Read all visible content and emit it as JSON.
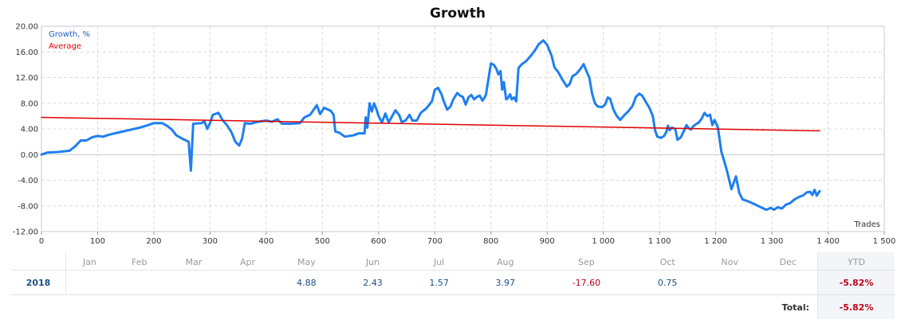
{
  "chart_data": {
    "type": "line",
    "title": "Growth",
    "xlabel": "Trades",
    "ylabel": "",
    "xlim": [
      0,
      1500
    ],
    "ylim": [
      -12,
      20
    ],
    "xticks": [
      "0",
      "100",
      "200",
      "300",
      "400",
      "500",
      "600",
      "700",
      "800",
      "900",
      "1 000",
      "1 100",
      "1 200",
      "1 300",
      "1 400",
      "1 500"
    ],
    "yticks": [
      "20.00",
      "16.00",
      "12.00",
      "8.00",
      "4.00",
      "0.00",
      "-4.00",
      "-8.00",
      "-12.00"
    ],
    "grid": true,
    "legend_position": "top-left",
    "series": [
      {
        "name": "Growth, %",
        "color": "#1e7ff0",
        "points": [
          [
            0,
            0.0
          ],
          [
            10,
            0.3
          ],
          [
            30,
            0.4
          ],
          [
            50,
            0.6
          ],
          [
            60,
            1.3
          ],
          [
            70,
            2.2
          ],
          [
            80,
            2.2
          ],
          [
            90,
            2.7
          ],
          [
            100,
            2.9
          ],
          [
            110,
            2.8
          ],
          [
            120,
            3.1
          ],
          [
            140,
            3.5
          ],
          [
            160,
            3.9
          ],
          [
            175,
            4.2
          ],
          [
            190,
            4.6
          ],
          [
            200,
            4.9
          ],
          [
            215,
            4.9
          ],
          [
            225,
            4.4
          ],
          [
            232,
            3.9
          ],
          [
            240,
            3.0
          ],
          [
            250,
            2.5
          ],
          [
            262,
            2.0
          ],
          [
            266,
            -2.5
          ],
          [
            270,
            4.8
          ],
          [
            285,
            4.9
          ],
          [
            290,
            5.2
          ],
          [
            295,
            4.0
          ],
          [
            300,
            4.9
          ],
          [
            305,
            6.2
          ],
          [
            315,
            6.5
          ],
          [
            322,
            5.4
          ],
          [
            330,
            4.6
          ],
          [
            338,
            3.5
          ],
          [
            345,
            2.0
          ],
          [
            352,
            1.4
          ],
          [
            357,
            2.5
          ],
          [
            362,
            4.9
          ],
          [
            372,
            4.8
          ],
          [
            385,
            5.1
          ],
          [
            400,
            5.3
          ],
          [
            410,
            5.1
          ],
          [
            420,
            5.5
          ],
          [
            428,
            4.8
          ],
          [
            445,
            4.8
          ],
          [
            460,
            4.9
          ],
          [
            468,
            5.8
          ],
          [
            478,
            6.2
          ],
          [
            483,
            6.8
          ],
          [
            490,
            7.7
          ],
          [
            496,
            6.3
          ],
          [
            503,
            7.3
          ],
          [
            515,
            6.8
          ],
          [
            520,
            6.2
          ],
          [
            523,
            3.6
          ],
          [
            530,
            3.4
          ],
          [
            540,
            2.8
          ],
          [
            555,
            3.0
          ],
          [
            565,
            3.3
          ],
          [
            575,
            3.3
          ],
          [
            577,
            5.8
          ],
          [
            580,
            4.2
          ],
          [
            584,
            8.0
          ],
          [
            588,
            6.7
          ],
          [
            592,
            8.0
          ],
          [
            596,
            7.1
          ],
          [
            600,
            6.0
          ],
          [
            606,
            5.0
          ],
          [
            612,
            6.4
          ],
          [
            618,
            5.0
          ],
          [
            623,
            5.8
          ],
          [
            630,
            6.9
          ],
          [
            637,
            6.1
          ],
          [
            641,
            5.1
          ],
          [
            648,
            5.3
          ],
          [
            655,
            6.2
          ],
          [
            660,
            5.3
          ],
          [
            668,
            5.3
          ],
          [
            675,
            6.5
          ],
          [
            685,
            7.2
          ],
          [
            695,
            8.3
          ],
          [
            700,
            10.1
          ],
          [
            706,
            10.4
          ],
          [
            712,
            9.4
          ],
          [
            716,
            8.3
          ],
          [
            722,
            7.0
          ],
          [
            728,
            7.5
          ],
          [
            733,
            8.6
          ],
          [
            740,
            9.6
          ],
          [
            745,
            9.2
          ],
          [
            750,
            9.0
          ],
          [
            755,
            7.8
          ],
          [
            760,
            8.9
          ],
          [
            765,
            9.3
          ],
          [
            770,
            8.6
          ],
          [
            775,
            9.0
          ],
          [
            780,
            9.2
          ],
          [
            785,
            8.4
          ],
          [
            788,
            8.8
          ],
          [
            791,
            9.3
          ],
          [
            797,
            12.6
          ],
          [
            800,
            14.2
          ],
          [
            805,
            14.0
          ],
          [
            810,
            13.3
          ],
          [
            813,
            12.5
          ],
          [
            817,
            13.0
          ],
          [
            820,
            10.1
          ],
          [
            823,
            11.3
          ],
          [
            827,
            8.6
          ],
          [
            830,
            8.8
          ],
          [
            834,
            9.4
          ],
          [
            837,
            8.6
          ],
          [
            841,
            8.9
          ],
          [
            845,
            8.3
          ],
          [
            849,
            13.5
          ],
          [
            855,
            14.1
          ],
          [
            862,
            14.5
          ],
          [
            870,
            15.3
          ],
          [
            878,
            16.2
          ],
          [
            885,
            17.2
          ],
          [
            893,
            17.8
          ],
          [
            900,
            17.1
          ],
          [
            908,
            15.4
          ],
          [
            913,
            13.6
          ],
          [
            920,
            12.8
          ],
          [
            927,
            11.7
          ],
          [
            935,
            10.6
          ],
          [
            940,
            11.0
          ],
          [
            945,
            12.2
          ],
          [
            952,
            12.6
          ],
          [
            958,
            13.2
          ],
          [
            965,
            14.1
          ],
          [
            970,
            13.0
          ],
          [
            975,
            12.0
          ],
          [
            980,
            9.5
          ],
          [
            985,
            8.0
          ],
          [
            990,
            7.5
          ],
          [
            998,
            7.4
          ],
          [
            1003,
            7.8
          ],
          [
            1008,
            8.9
          ],
          [
            1012,
            8.7
          ],
          [
            1018,
            7.0
          ],
          [
            1024,
            6.0
          ],
          [
            1030,
            5.4
          ],
          [
            1038,
            6.2
          ],
          [
            1045,
            6.8
          ],
          [
            1052,
            7.6
          ],
          [
            1058,
            9.0
          ],
          [
            1064,
            9.5
          ],
          [
            1069,
            9.2
          ],
          [
            1075,
            8.3
          ],
          [
            1082,
            7.3
          ],
          [
            1088,
            6.0
          ],
          [
            1092,
            3.8
          ],
          [
            1096,
            2.8
          ],
          [
            1103,
            2.6
          ],
          [
            1108,
            2.9
          ],
          [
            1112,
            3.5
          ],
          [
            1115,
            4.5
          ],
          [
            1118,
            3.8
          ],
          [
            1122,
            4.2
          ],
          [
            1128,
            4.0
          ],
          [
            1132,
            2.3
          ],
          [
            1138,
            2.7
          ],
          [
            1143,
            3.6
          ],
          [
            1148,
            4.6
          ],
          [
            1152,
            4.1
          ],
          [
            1156,
            3.9
          ],
          [
            1160,
            4.4
          ],
          [
            1166,
            4.8
          ],
          [
            1170,
            5.0
          ],
          [
            1175,
            5.6
          ],
          [
            1180,
            6.5
          ],
          [
            1185,
            6.0
          ],
          [
            1190,
            6.2
          ],
          [
            1194,
            4.6
          ],
          [
            1198,
            5.4
          ],
          [
            1204,
            4.2
          ],
          [
            1210,
            0.5
          ],
          [
            1220,
            -2.5
          ],
          [
            1228,
            -5.4
          ],
          [
            1236,
            -3.4
          ],
          [
            1242,
            -6.0
          ],
          [
            1248,
            -7.0
          ],
          [
            1258,
            -7.3
          ],
          [
            1268,
            -7.7
          ],
          [
            1280,
            -8.2
          ],
          [
            1290,
            -8.6
          ],
          [
            1298,
            -8.3
          ],
          [
            1304,
            -8.6
          ],
          [
            1310,
            -8.2
          ],
          [
            1318,
            -8.4
          ],
          [
            1325,
            -7.8
          ],
          [
            1332,
            -7.6
          ],
          [
            1340,
            -7.0
          ],
          [
            1348,
            -6.6
          ],
          [
            1355,
            -6.4
          ],
          [
            1362,
            -5.9
          ],
          [
            1368,
            -5.8
          ],
          [
            1372,
            -6.3
          ],
          [
            1376,
            -5.5
          ],
          [
            1380,
            -6.4
          ],
          [
            1385,
            -5.7
          ]
        ]
      },
      {
        "name": "Average",
        "color": "#e00000",
        "points": [
          [
            0,
            5.8
          ],
          [
            1385,
            3.7
          ]
        ]
      }
    ]
  },
  "monthly": {
    "months": [
      "Jan",
      "Feb",
      "Mar",
      "Apr",
      "May",
      "Jun",
      "Jul",
      "Aug",
      "Sep",
      "Oct",
      "Nov",
      "Dec"
    ],
    "ytd_label": "YTD",
    "year": "2018",
    "values": [
      "",
      "",
      "",
      "",
      "4.88",
      "2.43",
      "1.57",
      "3.97",
      "-17.60",
      "0.75",
      "",
      ""
    ],
    "ytd": "-5.82%",
    "total_label": "Total:",
    "total": "-5.82%"
  }
}
